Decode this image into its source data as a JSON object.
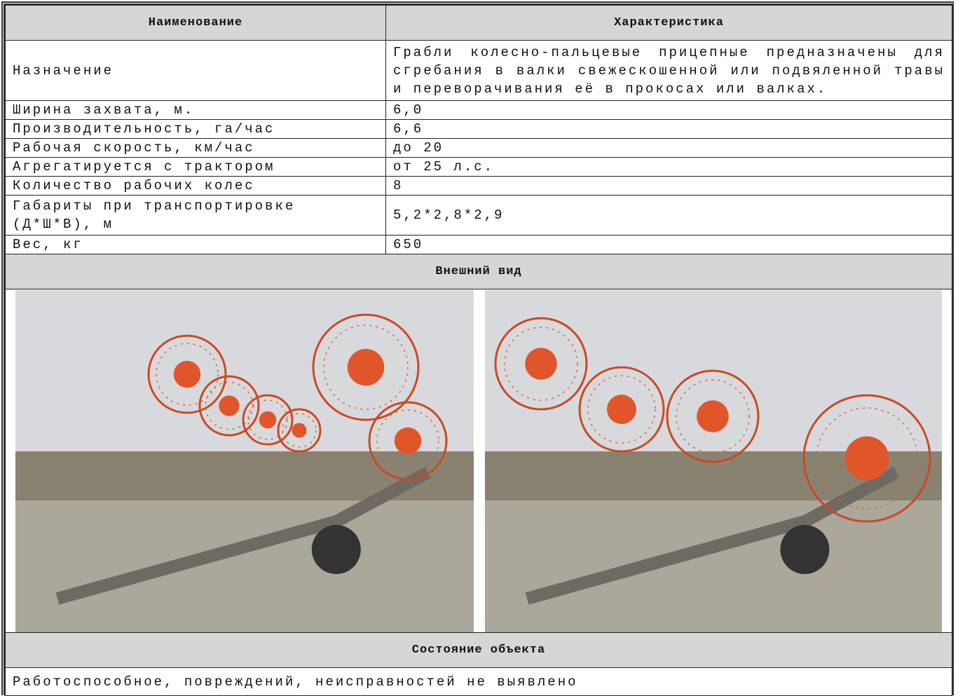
{
  "table": {
    "header": [
      "Наименование",
      "Характеристика"
    ],
    "rows": [
      [
        "Назначение",
        "Грабли колесно-пальцевые прицепные предназначены для сгребания в валки свежескошенной или подвяленной травы и переворачивания её в прокосах или валках."
      ],
      [
        "Ширина захвата, м.",
        "6,0"
      ],
      [
        "Производительность, га/час",
        "6,6"
      ],
      [
        "Рабочая скорость, км/час",
        "до 20"
      ],
      [
        "Агрегатируется с трактором",
        "от 25 л.с."
      ],
      [
        "Количество рабочих колес",
        "8"
      ],
      [
        "Габариты при транспортировке (Д*Ш*В), м",
        "5,2*2,8*2,9"
      ],
      [
        "Вес, кг",
        "650"
      ]
    ]
  },
  "appearance": {
    "title": "Внешний вид"
  },
  "condition": {
    "title": "Состояние объекта",
    "text": "Работоспособное, повреждений, неисправностей не выявлено"
  }
}
